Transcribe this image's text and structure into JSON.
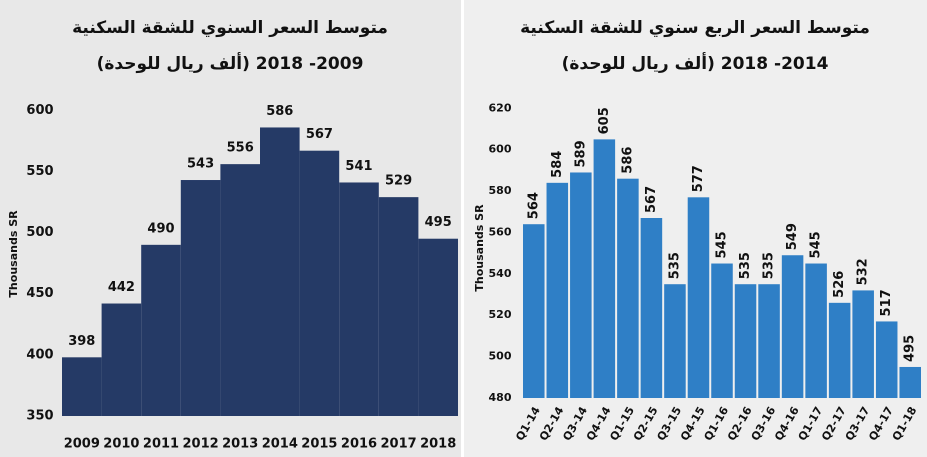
{
  "chart_data": [
    {
      "type": "bar",
      "title": "متوسط السعر السنوي للشقة السكنية",
      "subtitle": "(ألف ريال للوحدة)  2009- 2018",
      "y_label": "Thousands SR",
      "categories": [
        "2009",
        "2010",
        "2011",
        "2012",
        "2013",
        "2014",
        "2015",
        "2016",
        "2017",
        "2018"
      ],
      "values": [
        398,
        442,
        490,
        543,
        556,
        586,
        567,
        541,
        529,
        495
      ],
      "color": "#253a66",
      "ylim": [
        350,
        615
      ],
      "yticks": [
        350,
        400,
        450,
        500,
        550,
        600
      ],
      "grid": false
    },
    {
      "type": "bar",
      "title": "متوسط السعر الربع سنوي للشقة السكنية",
      "subtitle": "(ألف ريال للوحدة) 2014- 2018",
      "y_label": "Thousands SR",
      "categories": [
        "Q1-14",
        "Q2-14",
        "Q3-14",
        "Q4-14",
        "Q1-15",
        "Q2-15",
        "Q3-15",
        "Q4-15",
        "Q1-16",
        "Q2-16",
        "Q3-16",
        "Q4-16",
        "Q1-17",
        "Q2-17",
        "Q3-17",
        "Q4-17",
        "Q1-18"
      ],
      "values": [
        564,
        584,
        589,
        605,
        586,
        567,
        535,
        577,
        545,
        535,
        535,
        549,
        545,
        526,
        532,
        517,
        495
      ],
      "color": "#2f7fc6",
      "ylim": [
        480,
        625
      ],
      "yticks": [
        480,
        500,
        520,
        540,
        560,
        580,
        600,
        620
      ],
      "grid": false
    }
  ]
}
